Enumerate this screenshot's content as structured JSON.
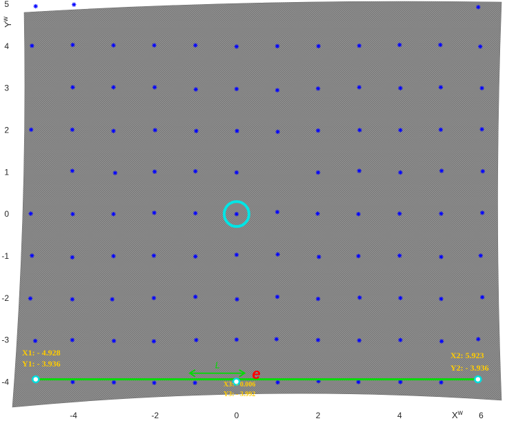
{
  "chart_data": {
    "type": "scatter",
    "xlabel": "X",
    "xlabel_sup": "w",
    "ylabel": "Y",
    "ylabel_sup": "w",
    "xlim": [
      -5.5,
      6.5
    ],
    "ylim": [
      -4.6,
      5.05
    ],
    "xticks": [
      "-4",
      "-2",
      "0",
      "2",
      "4",
      "6"
    ],
    "xtick_values": [
      -4,
      -2,
      0,
      2,
      4,
      6
    ],
    "yticks": [
      "5",
      "4",
      "3",
      "2",
      "1",
      "0",
      "-1",
      "-2",
      "-3",
      "-4"
    ],
    "ytick_values": [
      5,
      4,
      3,
      2,
      1,
      0,
      -1,
      -2,
      -3,
      -4
    ],
    "grid": false,
    "background_color": "#808080",
    "marker_color": "#0000ff",
    "marker": "asterisk",
    "points": [
      [
        -4.93,
        4.95
      ],
      [
        -3.99,
        4.99
      ],
      [
        5.93,
        4.93
      ],
      [
        -5.02,
        4.01
      ],
      [
        -4.02,
        4.03
      ],
      [
        -3.02,
        4.02
      ],
      [
        -2.02,
        4.02
      ],
      [
        -1.01,
        4.02
      ],
      [
        0.0,
        3.99
      ],
      [
        1.0,
        4.0
      ],
      [
        2.01,
        4.0
      ],
      [
        3.01,
        4.01
      ],
      [
        4.0,
        4.03
      ],
      [
        5.0,
        4.03
      ],
      [
        5.98,
        3.99
      ],
      [
        -4.02,
        3.02
      ],
      [
        -3.02,
        3.02
      ],
      [
        -2.01,
        3.02
      ],
      [
        -1.0,
        2.97
      ],
      [
        0.0,
        2.98
      ],
      [
        1.0,
        2.95
      ],
      [
        2.0,
        2.99
      ],
      [
        3.01,
        3.02
      ],
      [
        4.02,
        3.0
      ],
      [
        5.01,
        3.02
      ],
      [
        6.02,
        3.0
      ],
      [
        -5.04,
        2.01
      ],
      [
        -4.03,
        2.01
      ],
      [
        -3.02,
        1.98
      ],
      [
        -2.0,
        2.0
      ],
      [
        -0.99,
        1.98
      ],
      [
        0.01,
        1.98
      ],
      [
        1.01,
        1.96
      ],
      [
        2.0,
        1.99
      ],
      [
        3.02,
        2.0
      ],
      [
        4.02,
        2.0
      ],
      [
        5.01,
        2.01
      ],
      [
        6.02,
        2.02
      ],
      [
        -4.03,
        1.03
      ],
      [
        -2.98,
        0.98
      ],
      [
        -2.01,
        1.01
      ],
      [
        -1.01,
        1.02
      ],
      [
        -0.0,
        0.99
      ],
      [
        2.0,
        0.99
      ],
      [
        3.01,
        1.03
      ],
      [
        4.02,
        0.99
      ],
      [
        5.03,
        1.03
      ],
      [
        6.04,
        1.02
      ],
      [
        -5.05,
        0.01
      ],
      [
        -4.02,
        0.0
      ],
      [
        -3.02,
        0.0
      ],
      [
        -2.02,
        0.03
      ],
      [
        -1.01,
        0.02
      ],
      [
        0.0,
        0.0
      ],
      [
        1.0,
        0.05
      ],
      [
        1.99,
        0.01
      ],
      [
        2.99,
        0.0
      ],
      [
        4.0,
        0.01
      ],
      [
        5.02,
        0.01
      ],
      [
        6.03,
        0.03
      ],
      [
        -5.02,
        -0.99
      ],
      [
        -4.03,
        -1.03
      ],
      [
        -3.02,
        -1.0
      ],
      [
        -2.03,
        -0.99
      ],
      [
        -1.01,
        -1.01
      ],
      [
        0.0,
        -0.97
      ],
      [
        1.01,
        -0.96
      ],
      [
        2.02,
        -1.02
      ],
      [
        2.99,
        -1.0
      ],
      [
        4.0,
        -0.99
      ],
      [
        5.02,
        -1.02
      ],
      [
        5.99,
        -0.99
      ],
      [
        -5.06,
        -2.01
      ],
      [
        -4.03,
        -2.03
      ],
      [
        -3.05,
        -2.03
      ],
      [
        -2.03,
        -2.0
      ],
      [
        -1.01,
        -1.97
      ],
      [
        0.01,
        -2.03
      ],
      [
        1.0,
        -1.97
      ],
      [
        2.0,
        -2.02
      ],
      [
        3.02,
        -1.99
      ],
      [
        4.02,
        -2.0
      ],
      [
        5.02,
        -2.02
      ],
      [
        6.03,
        -1.98
      ],
      [
        -4.94,
        -3.02
      ],
      [
        -4.03,
        -3.0
      ],
      [
        -3.01,
        -3.02
      ],
      [
        -2.03,
        -3.03
      ],
      [
        -0.99,
        -3.0
      ],
      [
        -0.0,
        -2.99
      ],
      [
        0.98,
        -2.98
      ],
      [
        2.0,
        -3.0
      ],
      [
        3.01,
        -3.01
      ],
      [
        4.02,
        -3.0
      ],
      [
        5.03,
        -3.03
      ],
      [
        5.93,
        -2.98
      ],
      [
        -4.02,
        -4.0
      ],
      [
        -3.01,
        -4.01
      ],
      [
        -2.02,
        -4.02
      ],
      [
        -1.02,
        -4.02
      ],
      [
        1.01,
        -4.01
      ],
      [
        2.01,
        -3.98
      ],
      [
        2.99,
        -4.0
      ],
      [
        4.02,
        -4.0
      ],
      [
        5.02,
        -4.01
      ]
    ],
    "center_circle": {
      "x": 0.0,
      "y": 0.0,
      "color": "#00e5e5"
    },
    "measure_line": {
      "x": [
        -4.928,
        5.923
      ],
      "y": [
        -3.936,
        -3.936
      ],
      "color": "#00dd00"
    },
    "measure_points": [
      {
        "x": -4.928,
        "y": -3.936
      },
      {
        "x": 5.923,
        "y": -3.936
      },
      {
        "x": -0.006,
        "y": -3.992
      }
    ],
    "length_arrow": {
      "x": [
        -1.15,
        0.2
      ],
      "y": [
        -3.79,
        -3.79
      ],
      "label": "L",
      "color": "#00dd00"
    },
    "error_label": {
      "text": "e",
      "x": 0.38,
      "y": -3.83,
      "color": "#ff0000"
    },
    "annotations": [
      {
        "id": "p1",
        "line1": "X1: - 4.928",
        "line2": "Y1: - 3.936",
        "color": "#ffcc00"
      },
      {
        "id": "p2",
        "line1": "X2: 5.923",
        "line2": "Y2: - 3.936",
        "color": "#ffcc00"
      },
      {
        "id": "p3",
        "line1": "X3: - 0.006",
        "line2": "Y3: - 3.992",
        "color": "#ffcc00"
      }
    ]
  }
}
